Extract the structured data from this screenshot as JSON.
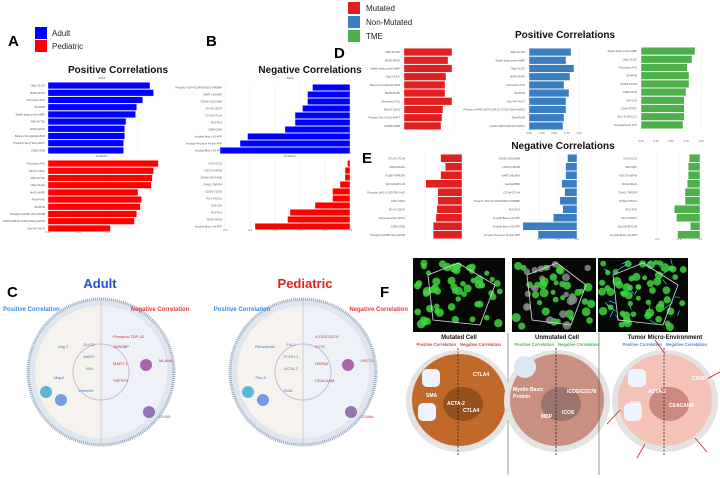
{
  "panel_labels": {
    "A": "A",
    "B": "B",
    "C": "C",
    "D": "D",
    "E": "E",
    "F": "F"
  },
  "legend_age": [
    {
      "label": "Adult",
      "color": "#0000ff"
    },
    {
      "label": "Pediatric",
      "color": "#ff0000"
    }
  ],
  "legend_mutation": [
    {
      "label": "Mutated",
      "color": "#e02020"
    },
    {
      "label": "Non-Mutated",
      "color": "#3a7dc0"
    },
    {
      "label": "TME",
      "color": "#4db04a"
    }
  ],
  "titles": {
    "a": "Positive Correlations",
    "b": "Negative Correlations",
    "d": "Positive Correlations",
    "e": "Negative Correlations"
  },
  "chart_data": [
    {
      "type": "bar",
      "orientation": "horizontal",
      "panel": "A",
      "facet": "Adult",
      "color": "#0000ff",
      "xlim": [
        0,
        0.9
      ],
      "xticks": [
        "0.00",
        "0.25",
        "0.50"
      ],
      "categories": [
        "Olig2-OLIG2",
        "MAP2-MAP2",
        "Fibronectin-FN1",
        "S6-RPS6",
        "Myelin basic protein-MBP",
        "SMA-ACTA2",
        "APOE-APOE",
        "Beta-2-microglobulin-B2M",
        "Phospho-Tau (T231)-MAPT",
        "CD68-CD68"
      ],
      "values": [
        0.85,
        0.88,
        0.79,
        0.74,
        0.73,
        0.65,
        0.64,
        0.64,
        0.63,
        0.63
      ]
    },
    {
      "type": "bar",
      "orientation": "horizontal",
      "panel": "A",
      "facet": "Pediatric",
      "color": "#ff0000",
      "xlim": [
        0,
        0.9
      ],
      "categories": [
        "Fibronectin-FN1",
        "PanCK-CDH1",
        "SMA-ACTA2",
        "Olig2-OLIG2",
        "MAP2-MAP2",
        "Pax6-PAX6",
        "S6-RPS6",
        "Phospho-GSK3B (S9)-GSK3B",
        "MAPK ERK1/2 (T202/Y204)-MAPK1",
        "Pan-AKT-AKT3"
      ],
      "values": [
        0.92,
        0.88,
        0.87,
        0.86,
        0.75,
        0.78,
        0.77,
        0.74,
        0.72,
        0.52
      ]
    },
    {
      "type": "bar",
      "orientation": "horizontal",
      "panel": "B",
      "facet": "Adult",
      "color": "#0000ff",
      "xlim": [
        -0.5,
        0
      ],
      "categories": [
        "Phospho-TDP-43 (S409/S410)-TARDBP",
        "MART1-MLANA",
        "CD66b-CEACAM8",
        "B7-H3-CD276",
        "CTLA4-CTLA4",
        "FUS-FUS",
        "CD80-CD80",
        "Amyloid Beta 1-42-APP",
        "Amyloid Precursor Protein-APP",
        "Amyloid Beta 1-40-APP"
      ],
      "values": [
        -0.15,
        -0.17,
        -0.17,
        -0.19,
        -0.22,
        -0.22,
        -0.26,
        -0.41,
        -0.44,
        -0.52
      ]
    },
    {
      "type": "bar",
      "orientation": "horizontal",
      "panel": "B",
      "facet": "Pediatric",
      "color": "#ff0000",
      "xlim": [
        -0.5,
        0
      ],
      "xticks": [
        "-0.5",
        "-0.4",
        "-0.3",
        "-0.2",
        "-0.1",
        "0.0"
      ],
      "categories": [
        "ICOS-ICOS",
        "HSC70-HSPA8",
        "CD66b-CEACAM8",
        "OX40L-TNFSF4",
        "CD163-CD163",
        "PD-1-PDCD1",
        "CD4-CD4",
        "FUS-FUS",
        "APOE-APOE",
        "Amyloid Beta 1-40-APP"
      ],
      "values": [
        -0.01,
        -0.02,
        -0.02,
        -0.04,
        -0.07,
        -0.07,
        -0.14,
        -0.24,
        -0.25,
        -0.38
      ]
    },
    {
      "type": "bar",
      "orientation": "horizontal",
      "panel": "D",
      "facet": "Mutated",
      "color": "#e02020",
      "xlim": [
        0,
        1
      ],
      "categories": [
        "SMA-ACTA2",
        "APOE-APOE",
        "Myelin basic protein-MBP",
        "Olig2-OLIG2",
        "Beta-2-microglobulin-B2M",
        "MAP2-MAP2",
        "Fibronectin-FN1",
        "PanCK-CDH1",
        "Phospho-Tau (T231)-MAPT",
        "GZMB-GZMB"
      ],
      "values": [
        0.96,
        0.88,
        0.96,
        0.84,
        0.82,
        0.82,
        0.96,
        0.78,
        0.76,
        0.74
      ]
    },
    {
      "type": "bar",
      "orientation": "horizontal",
      "panel": "D",
      "facet": "Non-Mutated",
      "color": "#3a7dc0",
      "xlim": [
        0,
        1
      ],
      "xticks": [
        "0.00",
        "0.25",
        "0.50",
        "0.75",
        "1.00"
      ],
      "categories": [
        "SMA-ACTA2",
        "Myelin basic protein-MBP",
        "Olig2-OLIG2",
        "MAP2-MAP2",
        "Fibronectin-FN1",
        "S6-RPS6",
        "Pan-AKT-AKT3",
        "Phospho-p44/42 MAPK ERK1/2 (T202/Y204)-MAPK1",
        "Pax6-PAX6",
        "p44/42 MAPK ERK1/2-MAPK1"
      ],
      "values": [
        0.84,
        0.74,
        0.9,
        0.82,
        0.7,
        0.8,
        0.74,
        0.74,
        0.7,
        0.68
      ]
    },
    {
      "type": "bar",
      "orientation": "horizontal",
      "panel": "D",
      "facet": "TME",
      "color": "#4db04a",
      "xlim": [
        0,
        1
      ],
      "xticks": [
        "0.00",
        "0.25",
        "0.50",
        "0.75",
        "1.00"
      ],
      "categories": [
        "Myelin basic protein-MBP",
        "Olig2-OLIG2",
        "Fibronectin-FN1",
        "S6-RPS6",
        "CD163-CD163",
        "CD44-CD44",
        "CD4-CD4",
        "CD45-PTPRC",
        "BCL-XL-BCL2L1",
        "Synaptophysin-SYP"
      ],
      "values": [
        0.9,
        0.85,
        0.77,
        0.8,
        0.8,
        0.75,
        0.72,
        0.72,
        0.72,
        0.7
      ]
    },
    {
      "type": "bar",
      "orientation": "horizontal",
      "panel": "E",
      "facet": "Mutated",
      "color": "#e02020",
      "xlim": [
        -0.4,
        0
      ],
      "categories": [
        "CTLA4-CTLA4",
        "CD20-MS4A1",
        "4-1BB-TNFRSF9",
        "EpCAM-EPCAM",
        "Phospho-JAK2 (Y1007/08)-JAK2",
        "CD27-CD27",
        "B7-H3-CD276",
        "Alpha-synuclein-SNCA",
        "CD80-CD80",
        "Phospho-GSK3B (S9)-GSK3B"
      ],
      "values": [
        -0.23,
        -0.18,
        -0.23,
        -0.39,
        -0.26,
        -0.26,
        -0.27,
        -0.28,
        -0.31,
        -0.31
      ]
    },
    {
      "type": "bar",
      "orientation": "horizontal",
      "panel": "E",
      "facet": "Non-Mutated",
      "color": "#3a7dc0",
      "xlim": [
        -0.6,
        0
      ],
      "xticks": [
        "-0.4",
        "-0.2",
        "0.0"
      ],
      "categories": [
        "CD66b-CEACAM8",
        "HSC70-HSPA8",
        "MART1-MLANA",
        "Her2-ERBB2",
        "CTLA4-CTLA4",
        "Phospho-TDP-43 (S409/S410)-TARDBP",
        "FUS-FUS",
        "Amyloid Beta 1-42-APP",
        "Amyloid Beta 1-40-APP",
        "Amyloid Precursor Protein-APP"
      ],
      "values": [
        -0.1,
        -0.12,
        -0.12,
        -0.16,
        -0.13,
        -0.18,
        -0.15,
        -0.25,
        -0.57,
        -0.41
      ]
    },
    {
      "type": "bar",
      "orientation": "horizontal",
      "panel": "E",
      "facet": "TME",
      "color": "#4db04a",
      "xlim": [
        -0.5,
        0
      ],
      "xticks": [
        "-0.4",
        "-0.2",
        "0.0"
      ],
      "categories": [
        "ICOS-ICOS",
        "MET-MET",
        "HSC70-HSPA8",
        "BAG3-BAG3",
        "OX40L-TNFSF4",
        "STING-STING1",
        "FUS-FUS",
        "PD-1-PDCD1",
        "EpCAM-EPCAM",
        "Amyloid Beta 1-40-APP"
      ],
      "values": [
        -0.1,
        -0.11,
        -0.11,
        -0.12,
        -0.14,
        -0.14,
        -0.24,
        -0.22,
        -0.09,
        -0.21
      ]
    }
  ],
  "panel_c": {
    "adult": {
      "title": "Adult",
      "title_color": "#2050e0",
      "positive": "Positive Correlation",
      "negative": "Negative Correlation",
      "pos_labels": [
        "Olig 2",
        "OLIG2",
        "MAP2",
        "VIM",
        "Map2",
        "Vimentin"
      ],
      "neg_labels": [
        "Phospho-TDP-43",
        "TARDBP",
        "MART-1",
        "TNFSF4",
        "MLANA",
        "OX40L"
      ]
    },
    "pediatric": {
      "title": "Pediatric",
      "title_color": "#e02020",
      "positive": "Positive Correlation",
      "negative": "Negative Correlation",
      "pos_labels": [
        "Fibronectin",
        "FN-1",
        "PCDH-1",
        "ACTA-2",
        "Pan-K",
        "SMA"
      ],
      "neg_labels": [
        "ICOS/CD278",
        "ICOS",
        "HSPA8",
        "CEACAM8",
        "HSC70",
        "CD66b"
      ]
    }
  },
  "panel_f": {
    "panels": [
      {
        "title": "Mutated Cell",
        "positive": "Positive Correlation",
        "negative": "Negative Correlation",
        "sub_color": "#e04040",
        "labels": [
          "SMA",
          "ACTA-2",
          "CTLA4",
          "CTLA4"
        ]
      },
      {
        "title": "Unmutated Cell",
        "positive": "Positive Correlation",
        "negative": "Negative Correlation",
        "sub_color": "#40c040",
        "labels": [
          "Myelin Basic",
          "Protein",
          "MBP",
          "ICOS",
          "ICOS/CD278"
        ]
      },
      {
        "title": "Tumor Micro-Environment",
        "positive": "Positive Correlation",
        "negative": "Negative Correlation",
        "sub_color": "#3a8ee0",
        "labels": [
          "SMA",
          "ACTA-2",
          "CEACAM8",
          "CD66b",
          "CD45"
        ]
      }
    ]
  }
}
